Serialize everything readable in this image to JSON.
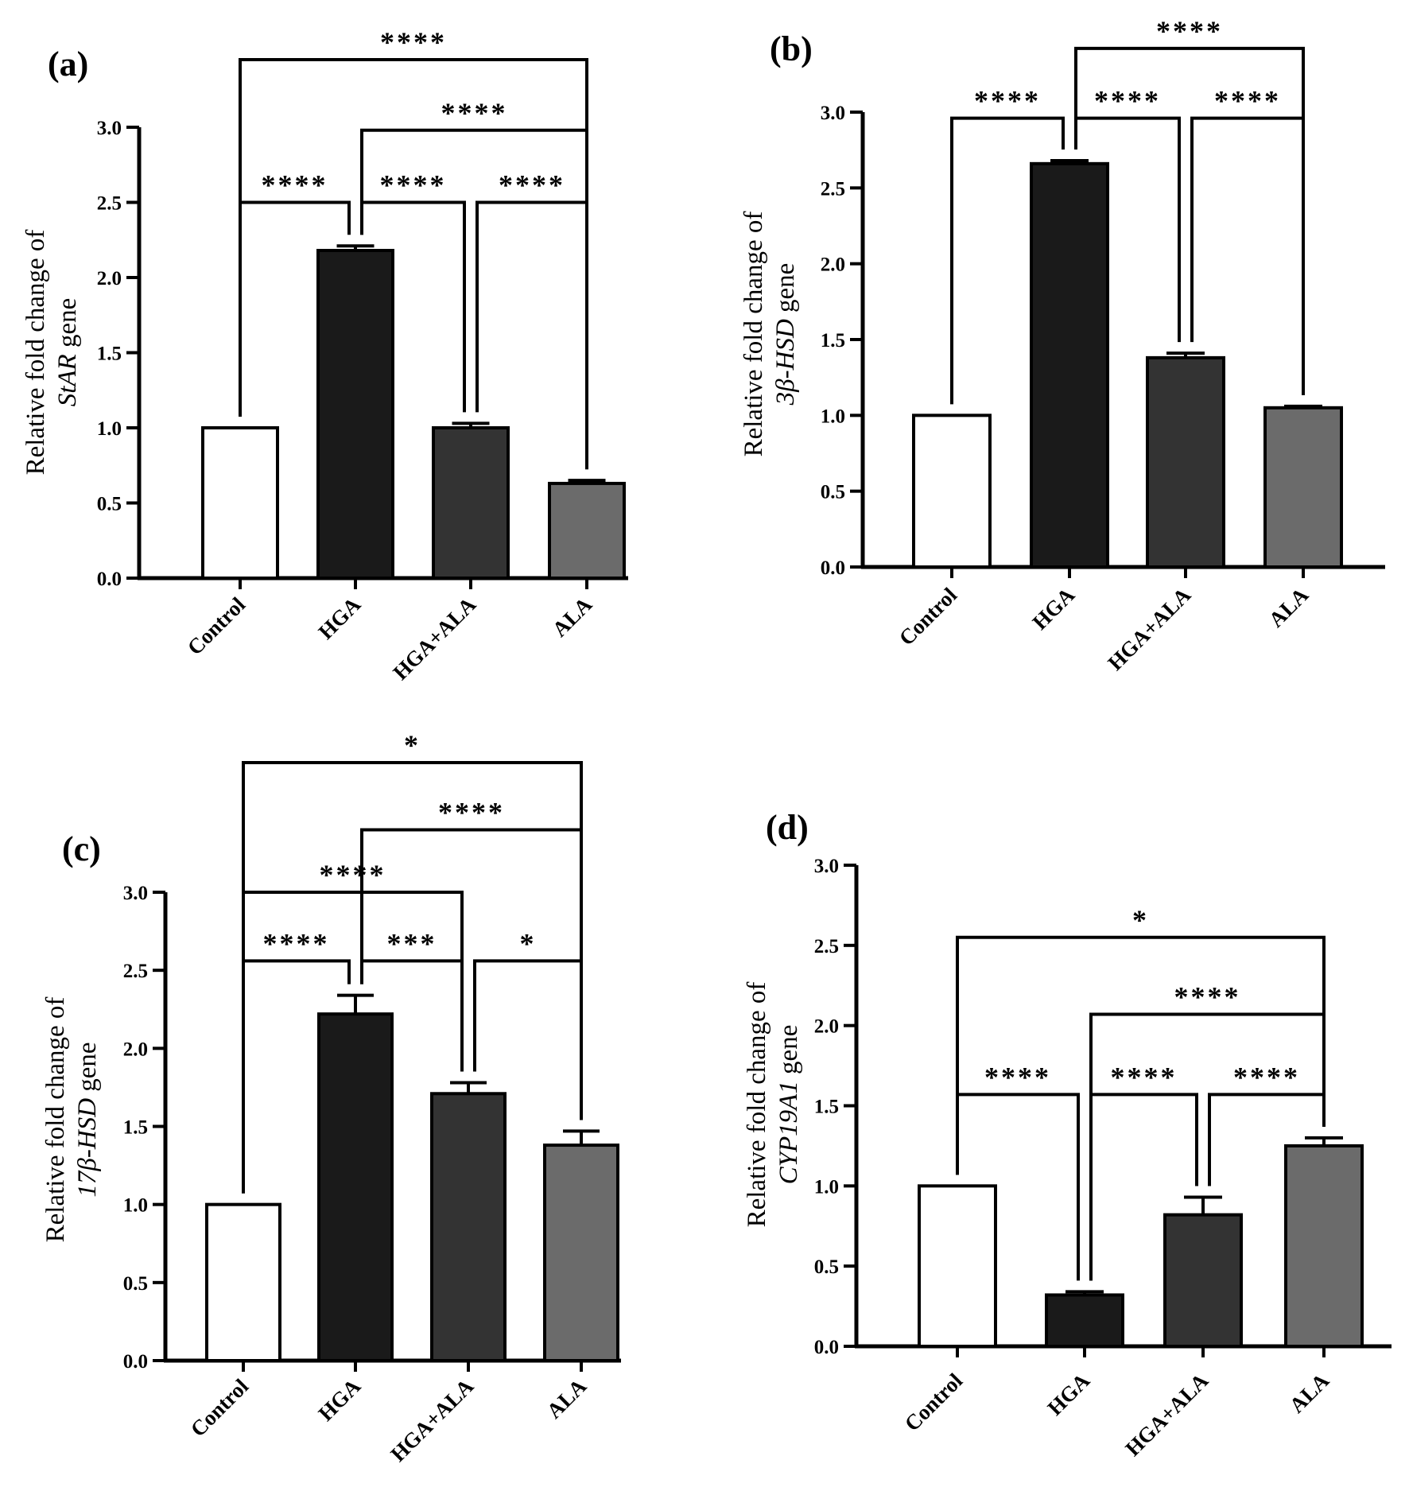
{
  "figure": {
    "colors": {
      "Control": "#ffffff",
      "HGA": "#1a1a1a",
      "HGA+ALA": "#333333",
      "ALA": "#6b6b6b",
      "stroke": "#000000"
    }
  },
  "chart_data": [
    {
      "type": "bar",
      "panel_label": "(a)",
      "categories": [
        "Control",
        "HGA",
        "HGA+ALA",
        "ALA"
      ],
      "values": [
        1.0,
        2.18,
        1.0,
        0.63
      ],
      "errors": [
        0,
        0.03,
        0.03,
        0.02
      ],
      "ylim": [
        0,
        3.0
      ],
      "yticks": [
        "0.0",
        "0.5",
        "1.0",
        "1.5",
        "2.0",
        "2.5",
        "3.0"
      ],
      "ylabel": {
        "line1": "Relative fold change of",
        "gene": "StAR",
        "suffix": " gene"
      },
      "significance": [
        {
          "from": 0,
          "to": 1,
          "label": "****",
          "y": 2.5
        },
        {
          "from": 1,
          "to": 2,
          "label": "****",
          "y": 2.5
        },
        {
          "from": 2,
          "to": 3,
          "label": "****",
          "y": 2.5
        },
        {
          "from": 1,
          "to": 3,
          "label": "****",
          "y": 2.98
        },
        {
          "from": 0,
          "to": 3,
          "label": "****",
          "y": 3.45
        }
      ]
    },
    {
      "type": "bar",
      "panel_label": "(b)",
      "categories": [
        "Control",
        "HGA",
        "HGA+ALA",
        "ALA"
      ],
      "values": [
        1.0,
        2.66,
        1.38,
        1.05
      ],
      "errors": [
        0,
        0.02,
        0.03,
        0.01
      ],
      "ylim": [
        0,
        3.0
      ],
      "yticks": [
        "0.0",
        "0.5",
        "1.0",
        "1.5",
        "2.0",
        "2.5",
        "3.0"
      ],
      "ylabel": {
        "line1": "Relative fold change of",
        "gene": "3β-HSD",
        "suffix": " gene"
      },
      "significance": [
        {
          "from": 0,
          "to": 1,
          "label": "****",
          "y": 2.96
        },
        {
          "from": 1,
          "to": 2,
          "label": "****",
          "y": 2.96
        },
        {
          "from": 2,
          "to": 3,
          "label": "****",
          "y": 2.96
        },
        {
          "from": 1,
          "to": 3,
          "label": "****",
          "y": 3.42
        }
      ]
    },
    {
      "type": "bar",
      "panel_label": "(c)",
      "categories": [
        "Control",
        "HGA",
        "HGA+ALA",
        "ALA"
      ],
      "values": [
        1.0,
        2.22,
        1.71,
        1.38
      ],
      "errors": [
        0,
        0.12,
        0.07,
        0.09
      ],
      "ylim": [
        0,
        3.0
      ],
      "yticks": [
        "0.0",
        "0.5",
        "1.0",
        "1.5",
        "2.0",
        "2.5",
        "3.0"
      ],
      "ylabel": {
        "line1": "Relative fold change of",
        "gene": "17β-HSD",
        "suffix": " gene"
      },
      "significance": [
        {
          "from": 0,
          "to": 1,
          "label": "****",
          "y": 2.56
        },
        {
          "from": 1,
          "to": 2,
          "label": "***",
          "y": 2.56
        },
        {
          "from": 2,
          "to": 3,
          "label": "*",
          "y": 2.56
        },
        {
          "from": 0,
          "to": 2,
          "label": "****",
          "y": 3.0
        },
        {
          "from": 1,
          "to": 3,
          "label": "****",
          "y": 3.4
        },
        {
          "from": 0,
          "to": 3,
          "label": "*",
          "y": 3.83
        }
      ]
    },
    {
      "type": "bar",
      "panel_label": "(d)",
      "categories": [
        "Control",
        "HGA",
        "HGA+ALA",
        "ALA"
      ],
      "values": [
        1.0,
        0.32,
        0.82,
        1.25
      ],
      "errors": [
        0,
        0.02,
        0.11,
        0.05
      ],
      "ylim": [
        0,
        3.0
      ],
      "yticks": [
        "0.0",
        "0.5",
        "1.0",
        "1.5",
        "2.0",
        "2.5",
        "3.0"
      ],
      "ylabel": {
        "line1": "Relative fold change of",
        "gene": "CYP19A1",
        "suffix": " gene"
      },
      "significance": [
        {
          "from": 0,
          "to": 1,
          "label": "****",
          "y": 1.57
        },
        {
          "from": 1,
          "to": 2,
          "label": "****",
          "y": 1.57
        },
        {
          "from": 2,
          "to": 3,
          "label": "****",
          "y": 1.57
        },
        {
          "from": 1,
          "to": 3,
          "label": "****",
          "y": 2.07
        },
        {
          "from": 0,
          "to": 3,
          "label": "*",
          "y": 2.55
        }
      ]
    }
  ]
}
